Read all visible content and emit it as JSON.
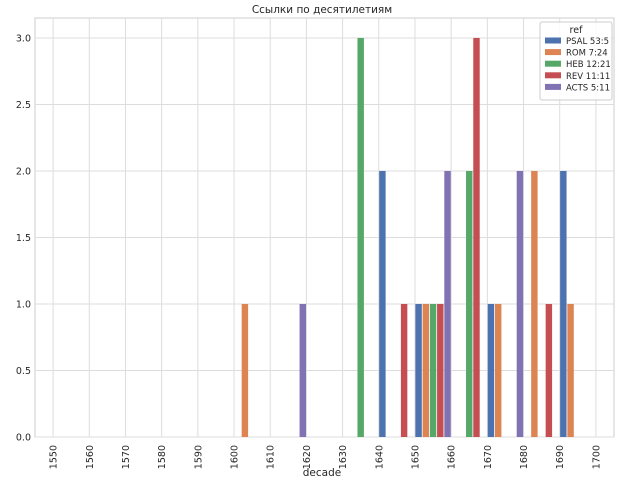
{
  "chart_data": {
    "type": "bar",
    "title": "Ссылки по десятилетиям",
    "xlabel": "decade",
    "ylabel": "",
    "categories": [
      "1550",
      "1560",
      "1570",
      "1580",
      "1590",
      "1600",
      "1610",
      "1620",
      "1630",
      "1640",
      "1650",
      "1660",
      "1670",
      "1680",
      "1690",
      "1700"
    ],
    "ylim": [
      0,
      3.15
    ],
    "yticks": [
      "0.0",
      "0.5",
      "1.0",
      "1.5",
      "2.0",
      "2.5",
      "3.0"
    ],
    "ytick_values": [
      0,
      0.5,
      1.0,
      1.5,
      2.0,
      2.5,
      3.0
    ],
    "grid": true,
    "legend": {
      "title": "ref",
      "position": "top-right"
    },
    "series": [
      {
        "name": "PSAL 53:5",
        "color": "#4c72b0",
        "values": [
          0,
          0,
          0,
          0,
          0,
          0,
          0,
          0,
          0,
          2,
          1,
          0,
          1,
          0,
          2,
          0
        ]
      },
      {
        "name": "ROM 7:24",
        "color": "#dd8452",
        "values": [
          0,
          0,
          0,
          0,
          0,
          1,
          0,
          0,
          0,
          0,
          1,
          0,
          1,
          2,
          1,
          0
        ]
      },
      {
        "name": "HEB 12:21",
        "color": "#55a868",
        "values": [
          0,
          0,
          0,
          0,
          0,
          0,
          0,
          0,
          3,
          0,
          1,
          2,
          0,
          0,
          0,
          0
        ]
      },
      {
        "name": "REV 11:11",
        "color": "#c44e52",
        "values": [
          0,
          0,
          0,
          0,
          0,
          0,
          0,
          0,
          0,
          1,
          1,
          3,
          0,
          1,
          0,
          0
        ]
      },
      {
        "name": "ACTS 5:11",
        "color": "#8172b3",
        "values": [
          0,
          0,
          0,
          0,
          0,
          0,
          1,
          0,
          0,
          0,
          2,
          0,
          2,
          0,
          0,
          0
        ]
      }
    ]
  }
}
